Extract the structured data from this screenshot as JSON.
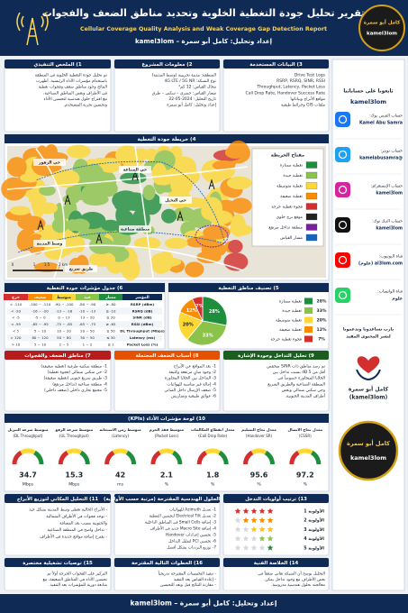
{
  "header": {
    "title": "تقرير تحليل جودة التغطية الخلوية وتحديد مناطق الضعف والفجوات",
    "subtitle": "Cellular Coverage Quality Analysis and Weak Coverage Gap Detection Report",
    "byline": "إعداد وتحليل: كامل أبو سمرة – kamel3lom",
    "logo_name": "كامل أبو سمرة",
    "logo_handle": "kamel3lom"
  },
  "sidebar": {
    "title": "تابعونا على حساباتنا",
    "handle": "kamel3lom",
    "accounts": [
      {
        "label": "حساب الفيس بوك:",
        "handle": "Kamel Abu Samra"
      },
      {
        "label": "حساب تويتر:",
        "handle": "@kamelabusamra"
      },
      {
        "label": "حساب الإنستغرام:",
        "handle": "kamel3lom"
      },
      {
        "label": "حساب التيك توك:",
        "handle": "kamel3lom"
      },
      {
        "label": "قناة اليوتيوب:",
        "handle": "al3lom.com (علوم)"
      },
      {
        "label": "قناة الواتساب:",
        "handle": "علوم"
      }
    ],
    "support": [
      "يارب تساعدونا وتدعمونا",
      "لنشر المحتوى المفيد"
    ],
    "signature": [
      "كامل أبو سمرة",
      "(kamel3lom)"
    ],
    "logo_name": "كامل أبو سمرة",
    "logo_handle": "kamel3lom"
  },
  "data_used": {
    "title": "3) البيانات المستخدمة",
    "lines": [
      "Drive Test Logs",
      "RSRP, RSRQ, SINR, RSSI",
      "Throughput, Latency, Packet Loss",
      "Call Drop Rate, Handover Success Rate",
      "مواقع الأبراج وبياناتها",
      "ملفات GIS وخرائط طبقية"
    ]
  },
  "project_info": {
    "title": "2) معلومات المشروع",
    "lines": [
      "المنطقة: مدينة تجريبية (وسط المدينة)",
      "نوع الشبكة: 4G LTE / 5G NR",
      "مجال القياس: 12 كم²",
      "مسار القياس: حضري – سكني – طرق",
      "تاريخ التحليل: 2024-05-22",
      "إعداد وتحليل: كامل أبو سمرة"
    ]
  },
  "summary": {
    "title": "1) الملخص التنفيذي",
    "lines": [
      "تم تحليل جودة التغطية الخلوية في المنطقة",
      "باستخدام مؤشرات الأداء الرئيسية. أظهرت",
      "النتائج وجود مناطق ضعف وفجوات تغطية",
      "في الأطراف وبعض المناطق الصناعية،",
      "مع اقتراح حلول هندسية لتحسين الأداء",
      "وتحسين تجربة المستخدم."
    ]
  },
  "map": {
    "title": "4) خريطة جودة التغطية",
    "legend_title": "مفتاح الخريطة",
    "legend": [
      {
        "label": "تغطية ممتازة",
        "color": "#1e8e3e"
      },
      {
        "label": "تغطية جيدة",
        "color": "#8bc34a"
      },
      {
        "label": "تغطية متوسطة",
        "color": "#fdd835"
      },
      {
        "label": "تغطية ضعيفة",
        "color": "#fb8c00"
      },
      {
        "label": "فجوة تغطية حرجة",
        "color": "#d32f2f"
      },
      {
        "label": "موقع برج خلوي",
        "color": "#222222"
      },
      {
        "label": "منطقة تداخل مرتفع",
        "color": "#7b1fa2"
      },
      {
        "label": "مسار القياس",
        "color": "#1565c0"
      }
    ],
    "places": [
      "حي الزهور",
      "حي الصناعة",
      "حي النخيل",
      "وسط المدينة",
      "منطقة صناعية",
      "طريق سريع"
    ],
    "scale": [
      "0",
      "1",
      "1.5",
      "2 km"
    ]
  },
  "kpi_table": {
    "title": "6) جدول مؤشرات جودة التغطية",
    "header": [
      "المؤشر",
      "ممتاز",
      "جيد",
      "متوسط",
      "ضعيف",
      "حرج"
    ],
    "rows": [
      [
        "RSRP (dBm)",
        "≥ -80",
        "-80 ~ -90",
        "-90 ~ -100",
        "-100 ~ -110",
        "< -110"
      ],
      [
        "RSRQ (dB)",
        "≥ -10",
        "-10 ~ -13",
        "-13 ~ -16",
        "-16 ~ -20",
        "< -20"
      ],
      [
        "SINR (dB)",
        "≥ 20",
        "13 ~ 20",
        "0 ~ 13",
        "-5 ~ 0",
        "< -5"
      ],
      [
        "RSSI (dBm)",
        "≥ -65",
        "-65 ~ -75",
        "-75 ~ -85",
        "-85 ~ -95",
        "< -95"
      ],
      [
        "DL Throughput (Mbps)",
        "≥ 50",
        "20 ~ 50",
        "10 ~ 20",
        "5 ~ 10",
        "< 5"
      ],
      [
        "Latency (ms)",
        "≤ 30",
        "30 ~ 50",
        "50 ~ 80",
        "80 ~ 120",
        "> 120"
      ],
      [
        "Packet Loss (%)",
        "≤ 1",
        "1 ~ 2",
        "2 ~ 5",
        "5 ~ 10",
        "> 10"
      ]
    ]
  },
  "chart_data": {
    "type": "pie",
    "title": "5) تصنيف مناطق التغطية",
    "categories": [
      "تغطية ممتازة",
      "تغطية جيدة",
      "تغطية متوسطة",
      "تغطية ضعيفة",
      "فجوة تغطية حرجة"
    ],
    "values": [
      28,
      33,
      20,
      12,
      7
    ],
    "value_labels": [
      "28%",
      "33%",
      "20%",
      "12%",
      "7%"
    ],
    "colors": [
      "#1e8e3e",
      "#8bc34a",
      "#fdd835",
      "#fb8c00",
      "#d32f2f"
    ]
  },
  "weak_zones": {
    "title": "7) مناطق الضعف والفجوات",
    "lines": [
      "1- منطقة سكنية طرفية (تغطية ضعيفة)",
      "2- حي سكني شمالي (فجوة تغطية)",
      "3- طريق سريع جنوبي (تغطية ضعيفة)",
      "4- منطقة صناعية (تداخل مرتفع)",
      "5- مجمع تجاري داخلي (ضعف داخلي)"
    ]
  },
  "causes": {
    "title": "8) أسباب الضعف المحتملة",
    "lines": [
      "1- بعد المواقع عن الأبراج",
      "2- وجود مبانٍ مرتفعة وكثيفة",
      "3- التداخل بين الخلايا المجاورة",
      "4- إمالة غير مناسبة للهوائيات",
      "5- ضعف الإرسال داخل المباني",
      "6- عوائق طبيعية وتضاريس"
    ]
  },
  "interference": {
    "title": "9) تحليل التداخل وجودة الإشارة",
    "lines": [
      "تم رصد مناطق ذات SINR منخفض",
      "أقل من 5 dB بسبب تداخل بين",
      "الخلايا المتجاورة خصوصاً في",
      "المنطقة الصناعية والطريق السريع",
      "وحي سكني شمالي وبعض",
      "أطراف المدينة الجنوبية."
    ]
  },
  "kpis": {
    "title": "10) لوحة مؤشرات الأداء (KPIs)",
    "items": [
      {
        "name": "متوسط سرعة التنزيل",
        "sub": "(DL Throughput)",
        "value": 34.7,
        "unit": "Mbps"
      },
      {
        "name": "متوسط سرعة الرفع",
        "sub": "(UL Throughput)",
        "value": 15.3,
        "unit": "Mbps"
      },
      {
        "name": "متوسط زمن الاستجابة",
        "sub": "(Latency)",
        "value": 42,
        "unit": "ms"
      },
      {
        "name": "متوسط فقد الحزم",
        "sub": "(Packet Loss)",
        "value": 2.1,
        "unit": "%"
      },
      {
        "name": "معدل انقطاع المكالمات",
        "sub": "(Call Drop Rate)",
        "value": 1.8,
        "unit": "%"
      },
      {
        "name": "معدل نجاح التسليم",
        "sub": "(Handover SR)",
        "value": 95.6,
        "unit": "%"
      },
      {
        "name": "معدل نجاح الاتصال",
        "sub": "(CSSR)",
        "value": 97.2,
        "unit": "%"
      }
    ]
  },
  "spatial": {
    "title": "11) التحليل المكاني لتوزيع الأبراج",
    "lines": [
      "- الأبراج الحالية تغطي وسط المدينة بشكل جيد",
      "- توجد فجوات في الأطراف الشمالية",
      "  والجنوبية بسبب بعد المسافة",
      "- تداخل واضح في المنطقة الصناعية",
      "- يقترح إضافة مواقع جديدة في الأطراف"
    ]
  },
  "solutions": {
    "title": "12) الحلول الهندسية المقترحة (مرتبة حسب الأولوية)",
    "lines": [
      "1- تعديل Azimuth للهوائيات",
      "2- تعديل Electrical Tilt لتحسين التغطية",
      "3- إضافة Small Cells في المناطق الداخلية",
      "4- إضافة Macro Site جديد في الأطراف",
      "5- تحسين إعدادات Handover",
      "6- تحسين PCI لتقليل التداخل",
      "7- توزيع الترددات بشكل أفضل"
    ]
  },
  "priorities": {
    "title": "13) ترتيب أولويات التدخل",
    "items": [
      {
        "label": "الأولوية 1",
        "rating": 5
      },
      {
        "label": "الأولوية 2",
        "rating": 4
      },
      {
        "label": "الأولوية 3",
        "rating": 3
      },
      {
        "label": "الأولوية 4",
        "rating": 2
      },
      {
        "label": "الأولوية 5",
        "rating": 1
      }
    ]
  },
  "ops": {
    "title": "15) توصيات تشغيلية مختصرة",
    "lines": [
      "التركيز على الفجوات الحرجة أولاً ثم",
      "تحسين الأداء في المناطق الضعيفة، مع",
      "متابعة دورية للمؤشرات بعد التنفيذ."
    ]
  },
  "next_steps": {
    "title": "16) الخطوات التالية المقترحة",
    "lines": [
      "- تنفيذ التحسينات المقترحة تدريجياً",
      "- إعادة القياس بعد التنفيذ",
      "- مقارنة النتائج قبل وبعد التحسين"
    ]
  },
  "conclusion": {
    "title": "14) الخلاصة الفنية",
    "lines": [
      "التحليل يوضح أن الشبكة تعاني ضعفاً في",
      "بعض الأطراف مع وجود تداخل يمكن",
      "معالجته بحلول هندسية مدروسة."
    ]
  },
  "footer": {
    "text": "إعداد وتحليل: كامل أبو سمرة – kamel3lom"
  }
}
